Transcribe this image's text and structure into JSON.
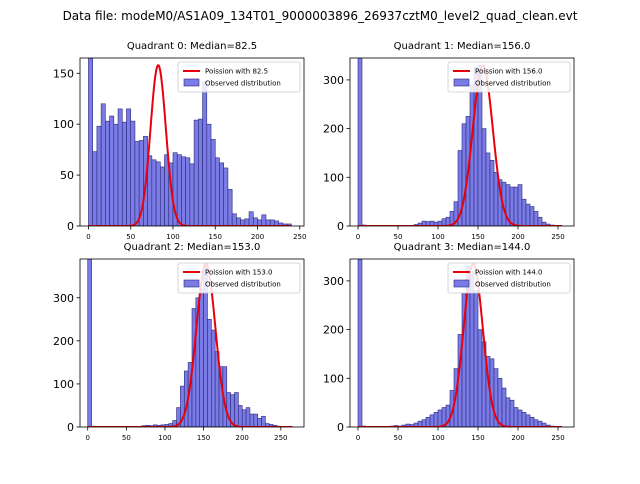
{
  "suptitle": "Data file: modeM0/AS1A09_134T01_9000003896_26937cztM0_level2_quad_clean.evt",
  "legend_observed": "Observed distribution",
  "colors": {
    "bar_fill": "#7b7be6",
    "bar_edge": "#2a2a7a",
    "curve": "#e8000b",
    "axis": "#000000"
  },
  "chart_data": [
    {
      "type": "bar",
      "title": "Quadrant 0: Median=82.5",
      "poisson_label": "Poission with 82.5",
      "xlim": [
        -10,
        255
      ],
      "ylim": [
        0,
        165
      ],
      "xticks": [
        0,
        50,
        100,
        150,
        200,
        250
      ],
      "yticks": [
        0,
        50,
        100,
        150
      ],
      "bin_width": 5,
      "bins_start": [
        0,
        5,
        10,
        15,
        20,
        25,
        30,
        35,
        40,
        45,
        50,
        55,
        60,
        65,
        70,
        75,
        80,
        85,
        90,
        95,
        100,
        105,
        110,
        115,
        120,
        125,
        130,
        135,
        140,
        145,
        150,
        155,
        160,
        165,
        170,
        175,
        180,
        185,
        190,
        195,
        200,
        205,
        210,
        215,
        220,
        225,
        230,
        235
      ],
      "values": [
        165,
        73,
        98,
        120,
        103,
        108,
        100,
        115,
        102,
        115,
        103,
        83,
        84,
        88,
        69,
        65,
        63,
        58,
        70,
        62,
        72,
        70,
        68,
        67,
        61,
        104,
        105,
        142,
        100,
        85,
        67,
        62,
        57,
        36,
        12,
        8,
        6,
        7,
        14,
        8,
        6,
        11,
        6,
        6,
        5,
        3,
        2,
        2
      ],
      "poisson_mean": 82.5,
      "poisson_peak": 158
    },
    {
      "type": "bar",
      "title": "Quadrant 1: Median=156.0",
      "poisson_label": "Poission with 156.0",
      "xlim": [
        -10,
        270
      ],
      "ylim": [
        0,
        345
      ],
      "xticks": [
        0,
        50,
        100,
        150,
        200,
        250
      ],
      "yticks": [
        0,
        100,
        200,
        300
      ],
      "bin_width": 5,
      "bins_start": [
        0,
        5,
        70,
        75,
        80,
        85,
        90,
        95,
        100,
        105,
        110,
        115,
        120,
        125,
        130,
        135,
        140,
        145,
        150,
        155,
        160,
        165,
        170,
        175,
        180,
        185,
        190,
        195,
        200,
        205,
        210,
        215,
        220,
        225,
        230,
        235,
        240,
        245
      ],
      "values": [
        345,
        2,
        3,
        6,
        10,
        9,
        10,
        8,
        10,
        15,
        18,
        30,
        50,
        155,
        210,
        225,
        290,
        325,
        330,
        200,
        150,
        135,
        110,
        95,
        90,
        85,
        80,
        80,
        85,
        55,
        45,
        40,
        30,
        18,
        8,
        4,
        2,
        1
      ],
      "poisson_mean": 156,
      "poisson_peak": 330
    },
    {
      "type": "bar",
      "title": "Quadrant 2: Median=153.0",
      "poisson_label": "Poission with 153.0",
      "xlim": [
        -10,
        280
      ],
      "ylim": [
        0,
        390
      ],
      "xticks": [
        0,
        50,
        100,
        150,
        200,
        250
      ],
      "yticks": [
        0,
        100,
        200,
        300
      ],
      "bin_width": 5,
      "bins_start": [
        0,
        5,
        70,
        75,
        80,
        85,
        90,
        95,
        100,
        105,
        110,
        115,
        120,
        125,
        130,
        135,
        140,
        145,
        150,
        155,
        160,
        165,
        170,
        175,
        180,
        185,
        190,
        195,
        200,
        205,
        210,
        215,
        220,
        225,
        230,
        235,
        240,
        245
      ],
      "values": [
        390,
        2,
        3,
        4,
        3,
        5,
        4,
        5,
        6,
        8,
        15,
        45,
        95,
        130,
        150,
        275,
        300,
        320,
        380,
        250,
        225,
        175,
        140,
        140,
        80,
        75,
        80,
        50,
        40,
        45,
        30,
        30,
        20,
        25,
        8,
        6,
        4,
        2
      ],
      "poisson_mean": 153,
      "poisson_peak": 378
    },
    {
      "type": "bar",
      "title": "Quadrant 3: Median=144.0",
      "poisson_label": "Poission with 144.0",
      "xlim": [
        -10,
        270
      ],
      "ylim": [
        0,
        345
      ],
      "xticks": [
        0,
        50,
        100,
        150,
        200,
        250
      ],
      "yticks": [
        0,
        100,
        200,
        300
      ],
      "bin_width": 5,
      "bins_start": [
        0,
        5,
        40,
        45,
        50,
        55,
        60,
        65,
        70,
        75,
        80,
        85,
        90,
        95,
        100,
        105,
        110,
        115,
        120,
        125,
        130,
        135,
        140,
        145,
        150,
        155,
        160,
        165,
        170,
        175,
        180,
        185,
        190,
        195,
        200,
        205,
        210,
        215,
        220,
        225,
        230,
        235,
        240
      ],
      "values": [
        345,
        2,
        2,
        3,
        2,
        4,
        6,
        5,
        8,
        12,
        15,
        20,
        25,
        30,
        35,
        40,
        45,
        75,
        120,
        190,
        275,
        330,
        320,
        280,
        200,
        175,
        145,
        140,
        120,
        100,
        80,
        60,
        55,
        40,
        35,
        30,
        25,
        20,
        15,
        12,
        8,
        4,
        2
      ],
      "poisson_mean": 144,
      "poisson_peak": 335
    }
  ]
}
